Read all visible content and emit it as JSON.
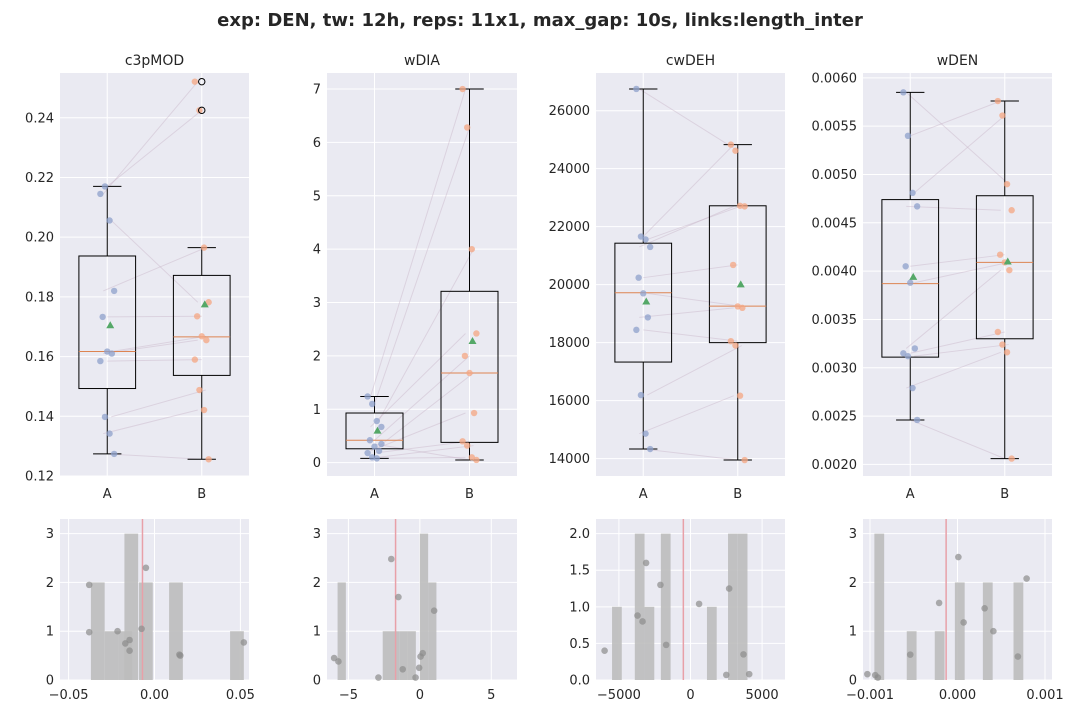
{
  "figure_title": "exp: DEN, tw: 12h, reps: 11x1, max_gap: 10s, links:length_inter",
  "colors": {
    "background": "#eaeaf2",
    "grid": "#ffffff",
    "group_a": "#8da0cb",
    "group_b": "#f4a582",
    "mean_marker": "#55a868",
    "median": "#dd8452",
    "hist_bar": "#bdbdbd",
    "hist_point": "#8c8c8c",
    "ref_line": "#e8a0a8",
    "pair_line": "#c9b6c9"
  },
  "chart_data": [
    {
      "type": "box",
      "title": "c3pMOD",
      "categories": [
        "A",
        "B"
      ],
      "ylim": [
        0.12,
        0.255
      ],
      "yticks": [
        0.12,
        0.14,
        0.16,
        0.18,
        0.2,
        0.22,
        0.24
      ],
      "ytick_labels": [
        "0.12",
        "0.14",
        "0.16",
        "0.18",
        "0.20",
        "0.22",
        "0.24"
      ],
      "boxes": [
        {
          "q1": 0.1493,
          "median": 0.1617,
          "q3": 0.1937,
          "whisker_low": 0.1274,
          "whisker_high": 0.217,
          "mean": 0.1705,
          "outliers": []
        },
        {
          "q1": 0.1537,
          "median": 0.1666,
          "q3": 0.1872,
          "whisker_low": 0.1256,
          "whisker_high": 0.1965,
          "mean": 0.1775,
          "outliers": [
            0.2521,
            0.2425
          ]
        }
      ],
      "points": [
        [
          0.2145,
          0.217,
          0.2056,
          0.182,
          0.1733,
          0.1617,
          0.161,
          0.1585,
          0.1398,
          0.1342,
          0.1274
        ],
        [
          0.2521,
          0.2425,
          0.1965,
          0.1782,
          0.1735,
          0.1668,
          0.1655,
          0.159,
          0.1488,
          0.1421,
          0.1256
        ]
      ],
      "pairs": [
        [
          0,
          0
        ],
        [
          1,
          1
        ],
        [
          2,
          3
        ],
        [
          3,
          2
        ],
        [
          4,
          4
        ],
        [
          5,
          5
        ],
        [
          6,
          6
        ],
        [
          7,
          7
        ],
        [
          8,
          8
        ],
        [
          9,
          9
        ],
        [
          10,
          10
        ]
      ]
    },
    {
      "type": "box",
      "title": "wDIA",
      "categories": [
        "A",
        "B"
      ],
      "ylim": [
        -0.25,
        7.3
      ],
      "yticks": [
        0,
        1,
        2,
        3,
        4,
        5,
        6,
        7
      ],
      "ytick_labels": [
        "0",
        "1",
        "2",
        "3",
        "4",
        "5",
        "6",
        "7"
      ],
      "boxes": [
        {
          "q1": 0.26,
          "median": 0.42,
          "q3": 0.93,
          "whisker_low": 0.08,
          "whisker_high": 1.24,
          "mean": 0.6,
          "outliers": []
        },
        {
          "q1": 0.38,
          "median": 1.68,
          "q3": 3.21,
          "whisker_low": 0.05,
          "whisker_high": 7.0,
          "mean": 2.28,
          "outliers": []
        }
      ],
      "points": [
        [
          1.24,
          1.1,
          0.78,
          0.67,
          0.42,
          0.3,
          0.22,
          0.18,
          0.1,
          0.08,
          0.35
        ],
        [
          7.0,
          6.28,
          4.0,
          2.42,
          2.0,
          1.68,
          0.93,
          0.4,
          0.32,
          0.1,
          0.05
        ]
      ],
      "pairs": [
        [
          0,
          0
        ],
        [
          1,
          1
        ],
        [
          2,
          2
        ],
        [
          3,
          3
        ],
        [
          4,
          4
        ],
        [
          5,
          5
        ],
        [
          6,
          6
        ],
        [
          7,
          7
        ],
        [
          8,
          8
        ],
        [
          9,
          9
        ],
        [
          10,
          10
        ]
      ]
    },
    {
      "type": "box",
      "title": "cwDEH",
      "categories": [
        "A",
        "B"
      ],
      "ylim": [
        13400,
        27300
      ],
      "yticks": [
        14000,
        16000,
        18000,
        20000,
        22000,
        24000,
        26000
      ],
      "ytick_labels": [
        "14000",
        "16000",
        "18000",
        "20000",
        "22000",
        "24000",
        "26000"
      ],
      "boxes": [
        {
          "q1": 17330,
          "median": 19720,
          "q3": 21430,
          "whisker_low": 14330,
          "whisker_high": 26750,
          "mean": 19420,
          "outliers": []
        },
        {
          "q1": 18000,
          "median": 19260,
          "q3": 22720,
          "whisker_low": 13950,
          "whisker_high": 24830,
          "mean": 20010,
          "outliers": []
        }
      ],
      "points": [
        [
          26750,
          21660,
          21560,
          21300,
          20240,
          19700,
          18870,
          18440,
          16190,
          14860,
          14330
        ],
        [
          24830,
          24620,
          22720,
          22700,
          20680,
          19250,
          19200,
          18050,
          17900,
          16170,
          13950
        ]
      ],
      "pairs": [
        [
          0,
          1
        ],
        [
          1,
          0
        ],
        [
          2,
          2
        ],
        [
          3,
          3
        ],
        [
          4,
          4
        ],
        [
          5,
          5
        ],
        [
          6,
          6
        ],
        [
          7,
          7
        ],
        [
          8,
          8
        ],
        [
          9,
          9
        ],
        [
          10,
          10
        ]
      ]
    },
    {
      "type": "box",
      "title": "wDEN",
      "categories": [
        "A",
        "B"
      ],
      "ylim": [
        0.00188,
        0.00605
      ],
      "yticks": [
        0.002,
        0.0025,
        0.003,
        0.0035,
        0.004,
        0.0045,
        0.005,
        0.0055,
        0.006
      ],
      "ytick_labels": [
        "0.0020",
        "0.0025",
        "0.0030",
        "0.0035",
        "0.0040",
        "0.0045",
        "0.0050",
        "0.0055",
        "0.0060"
      ],
      "boxes": [
        {
          "q1": 0.00311,
          "median": 0.00387,
          "q3": 0.00474,
          "whisker_low": 0.00246,
          "whisker_high": 0.00585,
          "mean": 0.00394,
          "outliers": []
        },
        {
          "q1": 0.0033,
          "median": 0.00409,
          "q3": 0.00478,
          "whisker_low": 0.00206,
          "whisker_high": 0.00576,
          "mean": 0.0041,
          "outliers": []
        }
      ],
      "points": [
        [
          0.00585,
          0.0054,
          0.00481,
          0.00467,
          0.00405,
          0.00388,
          0.0032,
          0.00315,
          0.00312,
          0.00279,
          0.00246
        ],
        [
          0.00576,
          0.00561,
          0.0049,
          0.00463,
          0.00417,
          0.00409,
          0.00401,
          0.00337,
          0.00324,
          0.00316,
          0.00206
        ]
      ],
      "pairs": [
        [
          0,
          2
        ],
        [
          1,
          0
        ],
        [
          2,
          1
        ],
        [
          3,
          3
        ],
        [
          4,
          4
        ],
        [
          5,
          5
        ],
        [
          6,
          6
        ],
        [
          7,
          7
        ],
        [
          8,
          8
        ],
        [
          9,
          9
        ],
        [
          10,
          10
        ]
      ]
    },
    {
      "type": "histogram",
      "xlim": [
        -0.055,
        0.055
      ],
      "ylim": [
        0,
        3.3
      ],
      "xticks": [
        -0.05,
        0.0,
        0.05
      ],
      "xtick_labels": [
        "−0.05",
        "0.00",
        "0.05"
      ],
      "yticks": [
        0,
        1,
        2,
        3
      ],
      "ytick_labels": [
        "0",
        "1",
        "2",
        "3"
      ],
      "bin_width": 0.008,
      "bins": [
        [
          -0.037,
          2
        ],
        [
          -0.029,
          1
        ],
        [
          -0.021,
          1
        ],
        [
          -0.0175,
          3
        ],
        [
          -0.009,
          2
        ],
        [
          0.0085,
          2
        ],
        [
          0.044,
          1
        ]
      ],
      "ref_line": -0.007,
      "points": [
        [
          -0.038,
          1.95
        ],
        [
          -0.038,
          0.98
        ],
        [
          -0.0215,
          1.0
        ],
        [
          -0.017,
          0.75
        ],
        [
          -0.0145,
          0.82
        ],
        [
          -0.0145,
          0.6
        ],
        [
          -0.0075,
          1.05
        ],
        [
          -0.005,
          2.3
        ],
        [
          0.0145,
          0.52
        ],
        [
          0.015,
          0.5
        ],
        [
          0.052,
          0.77
        ]
      ]
    },
    {
      "type": "histogram",
      "xlim": [
        -6.5,
        6.8
      ],
      "ylim": [
        0,
        3.3
      ],
      "xticks": [
        -5,
        0,
        5
      ],
      "xtick_labels": [
        "−5",
        "0",
        "5"
      ],
      "yticks": [
        0,
        1,
        2,
        3
      ],
      "ytick_labels": [
        "0",
        "1",
        "2",
        "3"
      ],
      "bin_width": 0.58,
      "bins": [
        [
          -5.76,
          2
        ],
        [
          -2.6,
          1
        ],
        [
          -2.02,
          1
        ],
        [
          -1.44,
          1
        ],
        [
          -0.86,
          1
        ],
        [
          0.0,
          3
        ],
        [
          0.58,
          2
        ]
      ],
      "ref_line": -1.7,
      "points": [
        [
          -6.0,
          0.45
        ],
        [
          -5.7,
          0.38
        ],
        [
          -2.9,
          0.05
        ],
        [
          -2.0,
          2.48
        ],
        [
          -1.5,
          1.7
        ],
        [
          -1.2,
          0.22
        ],
        [
          -0.3,
          0.05
        ],
        [
          -0.05,
          0.25
        ],
        [
          0.05,
          0.48
        ],
        [
          0.2,
          0.55
        ],
        [
          1.0,
          1.42
        ]
      ]
    },
    {
      "type": "histogram",
      "xlim": [
        -6600,
        6600
      ],
      "ylim": [
        0,
        2.2
      ],
      "xticks": [
        -5000,
        0,
        5000
      ],
      "xtick_labels": [
        "−5000",
        "0",
        "5000"
      ],
      "yticks": [
        0.0,
        0.5,
        1.0,
        1.5,
        2.0
      ],
      "ytick_labels": [
        "0.0",
        "0.5",
        "1.0",
        "1.5",
        "2.0"
      ],
      "bin_width": 680,
      "bins": [
        [
          -5480,
          1
        ],
        [
          -3890,
          2
        ],
        [
          -3210,
          1
        ],
        [
          -2070,
          2
        ],
        [
          1150,
          1
        ],
        [
          2620,
          2
        ],
        [
          3300,
          2
        ]
      ],
      "ref_line": -500,
      "points": [
        [
          -6000,
          0.4
        ],
        [
          -3700,
          0.88
        ],
        [
          -3350,
          0.8
        ],
        [
          -3100,
          1.6
        ],
        [
          -2100,
          1.3
        ],
        [
          -1700,
          0.48
        ],
        [
          600,
          1.04
        ],
        [
          2500,
          0.07
        ],
        [
          2700,
          1.25
        ],
        [
          3700,
          0.35
        ],
        [
          4100,
          0.08
        ]
      ]
    },
    {
      "type": "histogram",
      "xlim": [
        -0.00108,
        0.00108
      ],
      "ylim": [
        0,
        3.3
      ],
      "xticks": [
        -0.001,
        0.0,
        0.001
      ],
      "xtick_labels": [
        "−0.001",
        "0.000",
        "0.001"
      ],
      "yticks": [
        0,
        1,
        2,
        3
      ],
      "ytick_labels": [
        "0",
        "1",
        "2",
        "3"
      ],
      "bin_width": 0.000112,
      "bins": [
        [
          -0.00095,
          3
        ],
        [
          -0.00058,
          1
        ],
        [
          -0.00026,
          1
        ],
        [
          -3e-05,
          2
        ],
        [
          0.00029,
          2
        ],
        [
          0.00064,
          2
        ]
      ],
      "ref_line": -0.00013,
      "points": [
        [
          -0.00103,
          0.12
        ],
        [
          -0.00094,
          0.1
        ],
        [
          -0.00091,
          0.05
        ],
        [
          -0.00054,
          0.52
        ],
        [
          -0.00021,
          1.58
        ],
        [
          1e-05,
          2.52
        ],
        [
          7e-05,
          1.18
        ],
        [
          0.00031,
          1.47
        ],
        [
          0.00041,
          1.0
        ],
        [
          0.00069,
          0.48
        ],
        [
          0.00079,
          2.08
        ]
      ]
    }
  ]
}
